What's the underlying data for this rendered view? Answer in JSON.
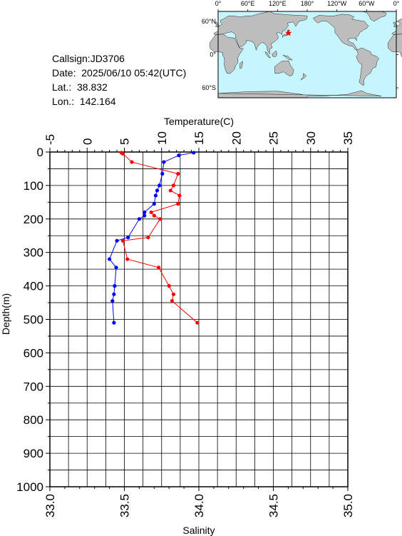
{
  "info": {
    "callsign": "Callsign:JD3706",
    "date": "Date:  2025/06/10 05:42(UTC)",
    "lat": "Lat.:  38.832",
    "lon": "Lon.:  142.164"
  },
  "map": {
    "lon_labels": [
      "0°",
      "60°E",
      "120°E",
      "180°",
      "120°W",
      "60°W",
      "0°"
    ],
    "lat_labels": [
      "60°N",
      "0°",
      "60°S"
    ],
    "ocean_color": "#c6f5ff",
    "land_color": "#bdbdbd",
    "marker": {
      "lon": 142.164,
      "lat": 38.832,
      "color": "#ff0000",
      "symbol": "star"
    }
  },
  "chart_data": {
    "type": "line",
    "title": "",
    "top_axis": {
      "label": "Temperature(C)",
      "range": [
        -5,
        35
      ],
      "ticks": [
        "-5",
        "0",
        "5",
        "10",
        "15",
        "20",
        "25",
        "30",
        "35"
      ]
    },
    "bottom_axis": {
      "label": "Salinity",
      "range": [
        33.0,
        35.0
      ],
      "ticks": [
        "33.0",
        "33.5",
        "34.0",
        "34.5",
        "35.0"
      ]
    },
    "y_axis": {
      "label": "Depth(m)",
      "range": [
        0,
        1000
      ],
      "inverted": true,
      "ticks": [
        "0",
        "100",
        "200",
        "300",
        "400",
        "500",
        "600",
        "700",
        "800",
        "900",
        "1000"
      ]
    },
    "grid": true,
    "series": [
      {
        "quantity": "temperature",
        "color": "#0000ff",
        "axis": "top",
        "points": [
          {
            "depth": 2,
            "value": 14.3
          },
          {
            "depth": 10,
            "value": 12.3
          },
          {
            "depth": 30,
            "value": 10.3
          },
          {
            "depth": 65,
            "value": 10.1
          },
          {
            "depth": 100,
            "value": 9.7
          },
          {
            "depth": 115,
            "value": 9.4
          },
          {
            "depth": 130,
            "value": 9.2
          },
          {
            "depth": 155,
            "value": 9.0
          },
          {
            "depth": 180,
            "value": 7.7
          },
          {
            "depth": 190,
            "value": 7.7
          },
          {
            "depth": 200,
            "value": 7.0
          },
          {
            "depth": 255,
            "value": 5.5
          },
          {
            "depth": 265,
            "value": 4.0
          },
          {
            "depth": 320,
            "value": 3.0
          },
          {
            "depth": 345,
            "value": 3.9
          },
          {
            "depth": 400,
            "value": 3.7
          },
          {
            "depth": 425,
            "value": 3.6
          },
          {
            "depth": 445,
            "value": 3.4
          },
          {
            "depth": 510,
            "value": 3.6
          }
        ]
      },
      {
        "quantity": "salinity",
        "color": "#ff0000",
        "axis": "bottom",
        "points": [
          {
            "depth": 2,
            "value": 33.48
          },
          {
            "depth": 5,
            "value": 33.49
          },
          {
            "depth": 30,
            "value": 33.55
          },
          {
            "depth": 65,
            "value": 33.86
          },
          {
            "depth": 100,
            "value": 33.83
          },
          {
            "depth": 115,
            "value": 33.81
          },
          {
            "depth": 130,
            "value": 33.87
          },
          {
            "depth": 155,
            "value": 33.86
          },
          {
            "depth": 180,
            "value": 33.68
          },
          {
            "depth": 190,
            "value": 33.7
          },
          {
            "depth": 200,
            "value": 33.74
          },
          {
            "depth": 255,
            "value": 33.66
          },
          {
            "depth": 265,
            "value": 33.49
          },
          {
            "depth": 320,
            "value": 33.52
          },
          {
            "depth": 345,
            "value": 33.73
          },
          {
            "depth": 400,
            "value": 33.8
          },
          {
            "depth": 425,
            "value": 33.83
          },
          {
            "depth": 445,
            "value": 33.82
          },
          {
            "depth": 510,
            "value": 33.99
          }
        ]
      }
    ]
  }
}
